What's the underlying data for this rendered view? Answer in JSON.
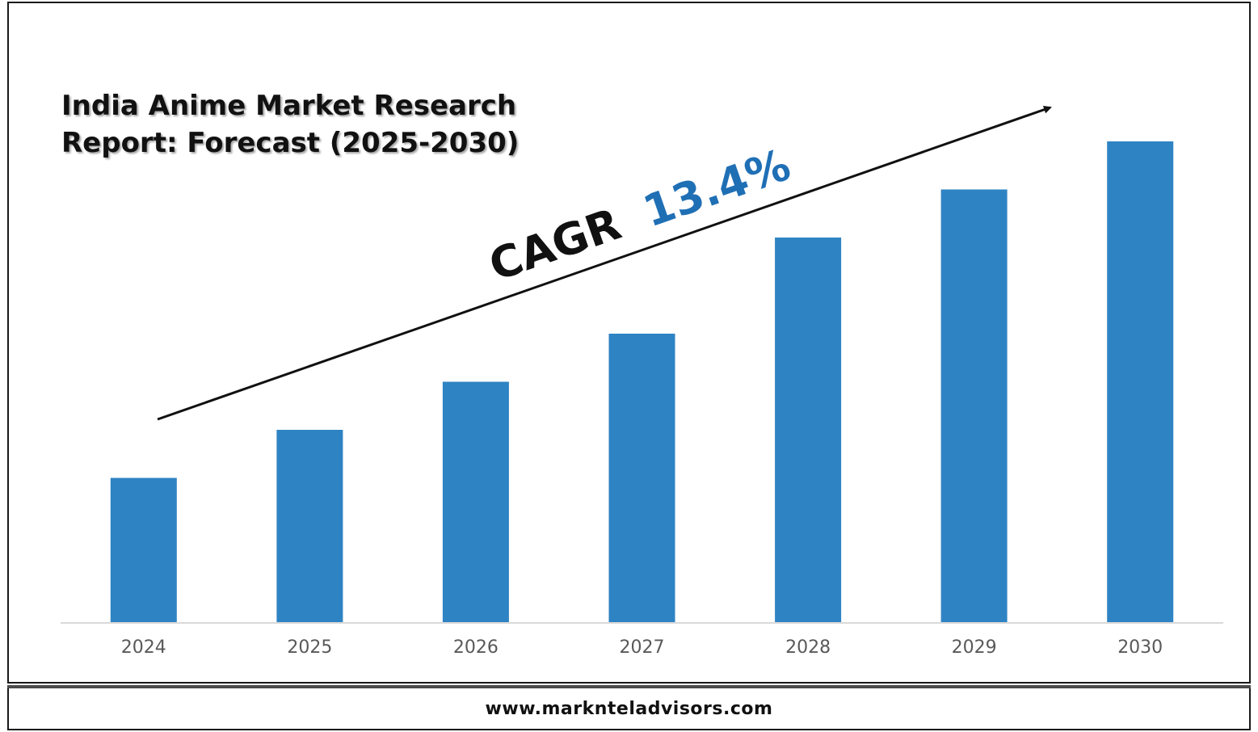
{
  "chart_data": {
    "type": "bar",
    "title": "India Anime Market Research Report: Forecast (2025-2030)",
    "categories": [
      "2024",
      "2025",
      "2026",
      "2027",
      "2028",
      "2029",
      "2030"
    ],
    "values": [
      30,
      40,
      50,
      60,
      80,
      90,
      100
    ],
    "xlabel": "",
    "ylabel": "",
    "ylim": [
      0,
      100
    ],
    "grid": false,
    "legend": "none",
    "bar_color": "#2E83C3",
    "annotation": {
      "label": "CAGR",
      "value": "13.4%",
      "label_color": "#111111",
      "value_color": "#1F6FB5"
    }
  },
  "footer": {
    "url": "www.marknteladvisors.com"
  }
}
